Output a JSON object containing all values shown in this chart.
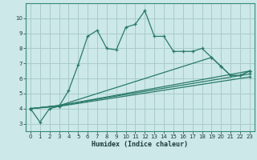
{
  "xlabel": "Humidex (Indice chaleur)",
  "bg_color": "#cce8e8",
  "grid_color": "#aacccc",
  "line_color": "#2a7a6a",
  "xlim": [
    -0.5,
    23.5
  ],
  "ylim": [
    2.5,
    11.0
  ],
  "yticks": [
    3,
    4,
    5,
    6,
    7,
    8,
    9,
    10
  ],
  "xticks": [
    0,
    1,
    2,
    3,
    4,
    5,
    6,
    7,
    8,
    9,
    10,
    11,
    12,
    13,
    14,
    15,
    16,
    17,
    18,
    19,
    20,
    21,
    22,
    23
  ],
  "series1_x": [
    0,
    1,
    2,
    3,
    4,
    5,
    6,
    7,
    8,
    9,
    10,
    11,
    12,
    13,
    14,
    15,
    16,
    17,
    18,
    19,
    20,
    21,
    22,
    23
  ],
  "series1_y": [
    4.0,
    3.1,
    4.0,
    4.15,
    5.2,
    6.9,
    8.8,
    9.2,
    8.0,
    7.9,
    9.4,
    9.6,
    10.5,
    8.8,
    8.8,
    7.8,
    7.8,
    7.8,
    8.0,
    7.4,
    6.8,
    6.2,
    6.2,
    6.5
  ],
  "series2_x": [
    0,
    3,
    19,
    20,
    21,
    22,
    23
  ],
  "series2_y": [
    4.0,
    4.2,
    7.4,
    6.8,
    6.2,
    6.2,
    6.5
  ],
  "series3_x": [
    0,
    3,
    23
  ],
  "series3_y": [
    4.0,
    4.2,
    6.5
  ],
  "series4_x": [
    0,
    3,
    23
  ],
  "series4_y": [
    4.0,
    4.2,
    6.3
  ],
  "series5_x": [
    0,
    3,
    23
  ],
  "series5_y": [
    4.0,
    4.15,
    6.1
  ]
}
